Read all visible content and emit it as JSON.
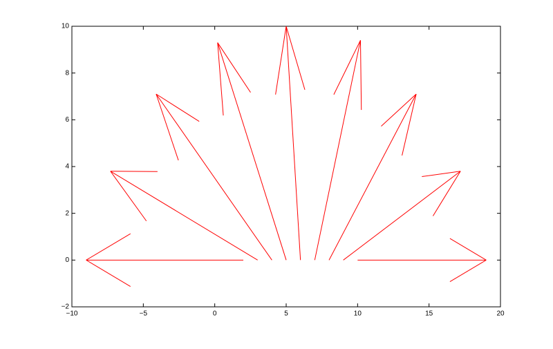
{
  "chart_data": {
    "type": "quiver",
    "title": "",
    "xlabel": "",
    "ylabel": "",
    "xlim": [
      -10,
      20
    ],
    "ylim": [
      -2,
      10
    ],
    "xticks": [
      -10,
      -5,
      0,
      5,
      10,
      15,
      20
    ],
    "yticks": [
      -2,
      0,
      2,
      4,
      6,
      8,
      10
    ],
    "xtick_labels": [
      "−10",
      "−5",
      "0",
      "5",
      "10",
      "15",
      "20"
    ],
    "ytick_labels": [
      "−2",
      "0",
      "2",
      "4",
      "6",
      "8",
      "10"
    ],
    "grid": false,
    "legend": "none",
    "color": "#ff0000",
    "arrows": [
      {
        "x": 2,
        "y": 0,
        "u": -11.0,
        "v": 0.0
      },
      {
        "x": 3,
        "y": 0,
        "u": -10.3,
        "v": 3.8
      },
      {
        "x": 4,
        "y": 0,
        "u": -8.1,
        "v": 7.1
      },
      {
        "x": 5,
        "y": 0,
        "u": -4.8,
        "v": 9.3
      },
      {
        "x": 6,
        "y": 0,
        "u": -1.0,
        "v": 10.0
      },
      {
        "x": 7,
        "y": 0,
        "u": 3.2,
        "v": 9.4
      },
      {
        "x": 8,
        "y": 0,
        "u": 6.1,
        "v": 7.1
      },
      {
        "x": 9,
        "y": 0,
        "u": 8.2,
        "v": 3.8
      },
      {
        "x": 10,
        "y": 0,
        "u": 9.0,
        "v": 0.0
      }
    ]
  }
}
